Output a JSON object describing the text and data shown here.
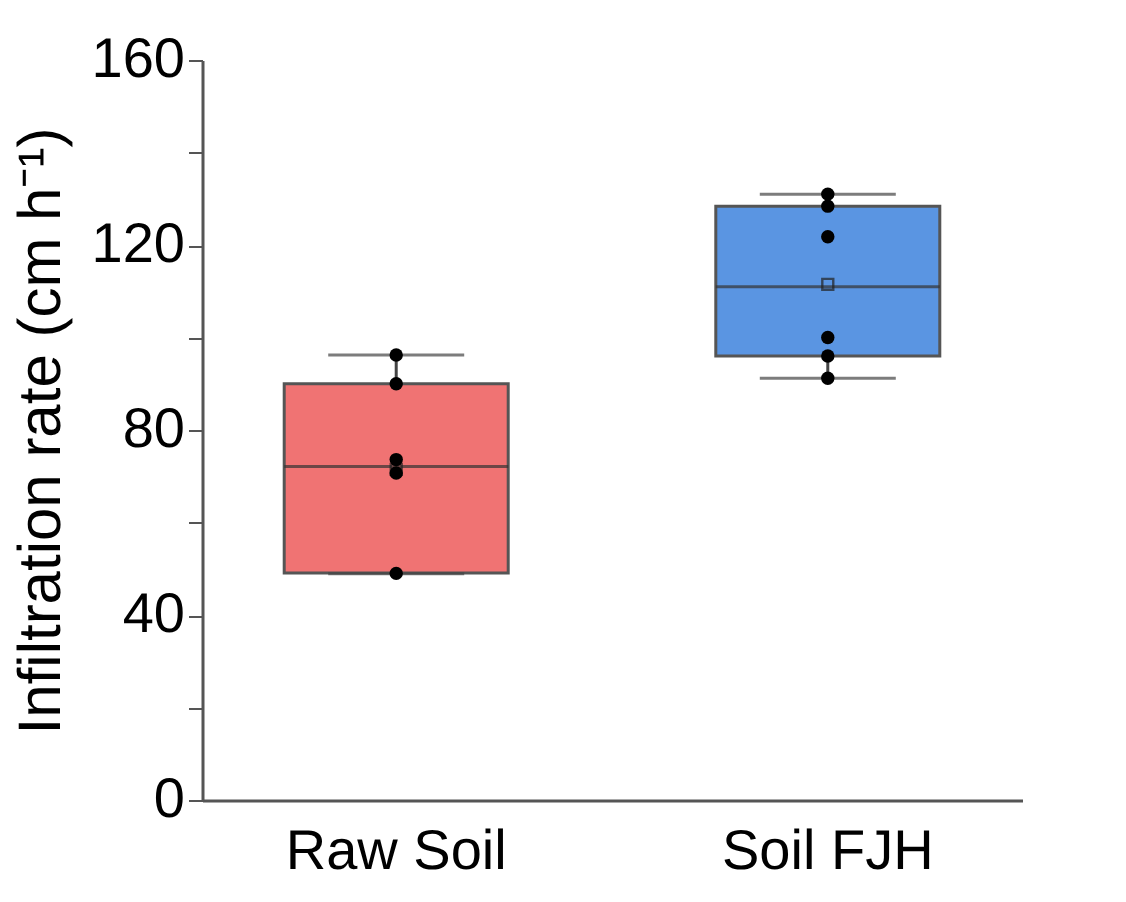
{
  "chart_data": {
    "type": "box",
    "categories": [
      "Raw Soil",
      "Soil FJH"
    ],
    "ylabel": "Infiltration rate (cm h⁻¹)",
    "ylim": [
      0,
      160
    ],
    "yticks": [
      0,
      {
        "value": 20,
        "label": null
      },
      40,
      {
        "value": 60,
        "label": null
      },
      80,
      {
        "value": 100,
        "label": null
      },
      120,
      {
        "value": 140,
        "label": null
      },
      160
    ],
    "colors": [
      "#f07373",
      "#5a95e2"
    ],
    "boxes": [
      {
        "low": 48.9,
        "q1": 49.1,
        "median": 72.1,
        "q3": 90,
        "high": 96.2,
        "mean": 71.5
      },
      {
        "low": 91.2,
        "q1": 96,
        "median": 111,
        "q3": 128.4,
        "high": 131,
        "mean": 111.5
      }
    ],
    "series": [
      {
        "type": "scatter",
        "color": "#000000",
        "x": [
          "Raw Soil",
          "Raw Soil",
          "Raw Soil",
          "Raw Soil",
          "Raw Soil",
          "Soil FJH",
          "Soil FJH",
          "Soil FJH",
          "Soil FJH",
          "Soil FJH",
          "Soil FJH"
        ],
        "values": [
          96.2,
          90,
          73.6,
          70.7,
          49,
          131,
          128.4,
          121.8,
          100,
          96,
          91.2
        ]
      }
    ],
    "marker": "circle",
    "grid": false
  }
}
